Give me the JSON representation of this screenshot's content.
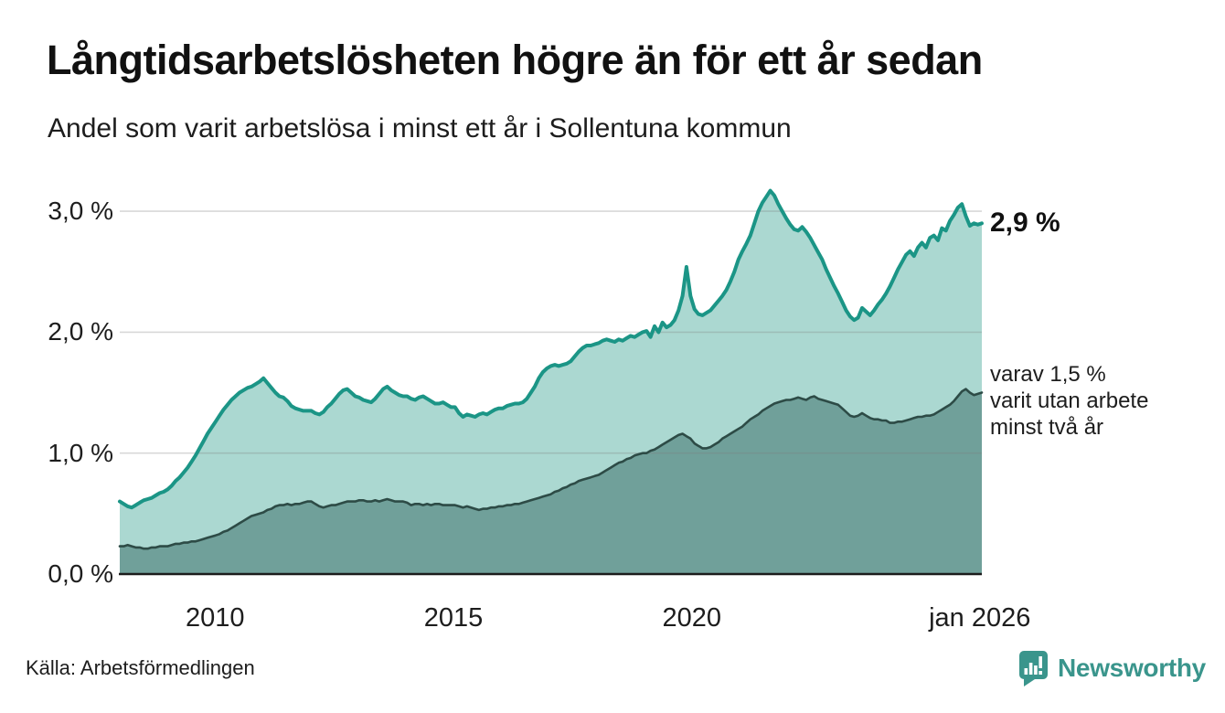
{
  "header": {
    "title": "Långtidsarbetslösheten högre än för ett år sedan",
    "subtitle": "Andel som varit arbetslösa i minst ett år i Sollentuna kommun"
  },
  "annotations": {
    "latest_total": "2,9 %",
    "secondary": "varav 1,5 %\nvarit utan arbete\nminst två år"
  },
  "source": {
    "label": "Källa: Arbetsförmedlingen"
  },
  "branding": {
    "name": "Newsworthy",
    "icon": "bar-chart-marker-icon",
    "color": "#3a958c"
  },
  "colors": {
    "line_total": "#1b9586",
    "fill_total": "#abd8d1",
    "line_two_years": "#2d4b46",
    "fill_two_years": "#70a09a",
    "gridline": "#d9d9d9",
    "axis": "#1c1c1c",
    "text": "#1d1d1d"
  },
  "chart_data": {
    "type": "area",
    "title": "Långtidsarbetslösheten högre än för ett år sedan",
    "subtitle": "Andel som varit arbetslösa i minst ett år i Sollentuna kommun",
    "x_unit": "month",
    "x_start": 2008.0,
    "x_end": 2026.0833,
    "ylim": [
      0,
      3.3
    ],
    "grid": "horizontal",
    "legend_position": "right-annotations",
    "y_ticks": [
      {
        "value": 0,
        "label": "0,0 %"
      },
      {
        "value": 1,
        "label": "1,0 %"
      },
      {
        "value": 2,
        "label": "2,0 %"
      },
      {
        "value": 3,
        "label": "3,0 %"
      }
    ],
    "x_ticks": [
      {
        "value": 2010,
        "label": "2010"
      },
      {
        "value": 2015,
        "label": "2015"
      },
      {
        "value": 2020,
        "label": "2020"
      },
      {
        "value": 2026.04,
        "label": "jan 2026"
      }
    ],
    "series": [
      {
        "name": "arbetslösa minst ett år",
        "latest_label": "2,9 %",
        "line_color": "#1b9586",
        "fill_color": "#abd8d1",
        "values": [
          0.6,
          0.58,
          0.56,
          0.55,
          0.57,
          0.59,
          0.61,
          0.62,
          0.63,
          0.65,
          0.67,
          0.68,
          0.7,
          0.73,
          0.77,
          0.8,
          0.84,
          0.88,
          0.93,
          0.98,
          1.04,
          1.1,
          1.16,
          1.21,
          1.26,
          1.31,
          1.36,
          1.4,
          1.44,
          1.47,
          1.5,
          1.52,
          1.54,
          1.55,
          1.57,
          1.59,
          1.62,
          1.58,
          1.54,
          1.5,
          1.47,
          1.46,
          1.43,
          1.39,
          1.37,
          1.36,
          1.35,
          1.35,
          1.35,
          1.33,
          1.32,
          1.34,
          1.38,
          1.41,
          1.45,
          1.49,
          1.52,
          1.53,
          1.5,
          1.47,
          1.46,
          1.44,
          1.43,
          1.42,
          1.45,
          1.49,
          1.53,
          1.55,
          1.52,
          1.5,
          1.48,
          1.47,
          1.47,
          1.45,
          1.44,
          1.46,
          1.47,
          1.45,
          1.43,
          1.41,
          1.41,
          1.42,
          1.4,
          1.38,
          1.38,
          1.33,
          1.3,
          1.32,
          1.31,
          1.3,
          1.32,
          1.33,
          1.32,
          1.34,
          1.36,
          1.37,
          1.37,
          1.39,
          1.4,
          1.41,
          1.41,
          1.42,
          1.45,
          1.5,
          1.55,
          1.62,
          1.67,
          1.7,
          1.72,
          1.73,
          1.72,
          1.73,
          1.74,
          1.76,
          1.8,
          1.84,
          1.87,
          1.89,
          1.89,
          1.9,
          1.91,
          1.93,
          1.94,
          1.93,
          1.92,
          1.94,
          1.93,
          1.95,
          1.97,
          1.96,
          1.98,
          2.0,
          2.01,
          1.96,
          2.05,
          2.0,
          2.08,
          2.04,
          2.06,
          2.1,
          2.18,
          2.3,
          2.54,
          2.3,
          2.19,
          2.15,
          2.14,
          2.16,
          2.18,
          2.22,
          2.26,
          2.3,
          2.35,
          2.42,
          2.5,
          2.6,
          2.67,
          2.73,
          2.8,
          2.9,
          3.0,
          3.07,
          3.12,
          3.17,
          3.13,
          3.06,
          3.0,
          2.94,
          2.89,
          2.85,
          2.84,
          2.87,
          2.83,
          2.78,
          2.72,
          2.66,
          2.6,
          2.52,
          2.45,
          2.38,
          2.32,
          2.25,
          2.18,
          2.13,
          2.1,
          2.12,
          2.2,
          2.17,
          2.14,
          2.18,
          2.23,
          2.27,
          2.32,
          2.38,
          2.45,
          2.52,
          2.58,
          2.64,
          2.67,
          2.63,
          2.7,
          2.74,
          2.7,
          2.78,
          2.8,
          2.76,
          2.86,
          2.84,
          2.92,
          2.97,
          3.03,
          3.06,
          2.96,
          2.88,
          2.9,
          2.89,
          2.9
        ]
      },
      {
        "name": "varav utan arbete minst två år",
        "latest_label": "varav 1,5 % varit utan arbete minst två år",
        "line_color": "#2d4b46",
        "fill_color": "#70a09a",
        "values": [
          0.23,
          0.23,
          0.24,
          0.23,
          0.22,
          0.22,
          0.21,
          0.21,
          0.22,
          0.22,
          0.23,
          0.23,
          0.23,
          0.24,
          0.25,
          0.25,
          0.26,
          0.26,
          0.27,
          0.27,
          0.28,
          0.29,
          0.3,
          0.31,
          0.32,
          0.33,
          0.35,
          0.36,
          0.38,
          0.4,
          0.42,
          0.44,
          0.46,
          0.48,
          0.49,
          0.5,
          0.51,
          0.53,
          0.54,
          0.56,
          0.57,
          0.57,
          0.58,
          0.57,
          0.58,
          0.58,
          0.59,
          0.6,
          0.6,
          0.58,
          0.56,
          0.55,
          0.56,
          0.57,
          0.57,
          0.58,
          0.59,
          0.6,
          0.6,
          0.6,
          0.61,
          0.61,
          0.6,
          0.6,
          0.61,
          0.6,
          0.61,
          0.62,
          0.61,
          0.6,
          0.6,
          0.6,
          0.59,
          0.57,
          0.58,
          0.58,
          0.57,
          0.58,
          0.57,
          0.58,
          0.58,
          0.57,
          0.57,
          0.57,
          0.57,
          0.56,
          0.55,
          0.56,
          0.55,
          0.54,
          0.53,
          0.54,
          0.54,
          0.55,
          0.55,
          0.56,
          0.56,
          0.57,
          0.57,
          0.58,
          0.58,
          0.59,
          0.6,
          0.61,
          0.62,
          0.63,
          0.64,
          0.65,
          0.66,
          0.68,
          0.69,
          0.71,
          0.72,
          0.74,
          0.75,
          0.77,
          0.78,
          0.79,
          0.8,
          0.81,
          0.82,
          0.84,
          0.86,
          0.88,
          0.9,
          0.92,
          0.93,
          0.95,
          0.96,
          0.98,
          0.99,
          1.0,
          1.0,
          1.02,
          1.03,
          1.05,
          1.07,
          1.09,
          1.11,
          1.13,
          1.15,
          1.16,
          1.14,
          1.12,
          1.08,
          1.06,
          1.04,
          1.04,
          1.05,
          1.07,
          1.09,
          1.12,
          1.14,
          1.16,
          1.18,
          1.2,
          1.22,
          1.25,
          1.28,
          1.3,
          1.32,
          1.35,
          1.37,
          1.39,
          1.41,
          1.42,
          1.43,
          1.44,
          1.44,
          1.45,
          1.46,
          1.45,
          1.44,
          1.46,
          1.47,
          1.45,
          1.44,
          1.43,
          1.42,
          1.41,
          1.4,
          1.37,
          1.34,
          1.31,
          1.3,
          1.31,
          1.33,
          1.31,
          1.29,
          1.28,
          1.28,
          1.27,
          1.27,
          1.25,
          1.25,
          1.26,
          1.26,
          1.27,
          1.28,
          1.29,
          1.3,
          1.3,
          1.31,
          1.31,
          1.32,
          1.34,
          1.36,
          1.38,
          1.4,
          1.43,
          1.47,
          1.51,
          1.53,
          1.5,
          1.48,
          1.49,
          1.5
        ]
      }
    ]
  }
}
